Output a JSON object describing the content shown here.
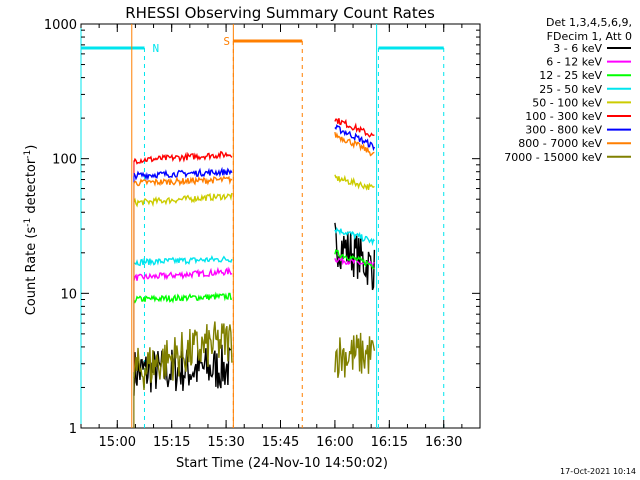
{
  "chart_data": {
    "type": "line",
    "title": "RHESSI Observing Summary Count Rates",
    "xlabel": "Start Time (24-Nov-10 14:50:02)",
    "ylabel": "Count Rate (s⁻¹ detector⁻¹)",
    "ylabel_main": "Count Rate (s",
    "ylabel_exp1": "-1",
    "ylabel_mid": " detector",
    "ylabel_exp2": "-1",
    "ylabel_end": ")",
    "yscale": "log",
    "ylim": [
      1,
      1000
    ],
    "xlim_minutes": [
      -10,
      100
    ],
    "x_ticks": [
      {
        "label": "15:00",
        "min": 0
      },
      {
        "label": "15:15",
        "min": 15
      },
      {
        "label": "15:30",
        "min": 30
      },
      {
        "label": "15:45",
        "min": 45
      },
      {
        "label": "16:00",
        "min": 60
      },
      {
        "label": "16:15",
        "min": 75
      },
      {
        "label": "16:30",
        "min": 90
      }
    ],
    "y_ticks": [
      {
        "label": "1",
        "value": 1
      },
      {
        "label": "10",
        "value": 10
      },
      {
        "label": "100",
        "value": 100
      },
      {
        "label": "1000",
        "value": 1000
      }
    ],
    "legend_header": [
      "Det 1,3,4,5,6,9,",
      "FDecim 1, Att 0"
    ],
    "series": [
      {
        "name": "3 - 6 keV",
        "color": "#000000",
        "seg1": [
          2.6,
          2.8
        ],
        "seg2": [
          24,
          15
        ]
      },
      {
        "name": "6 - 12 keV",
        "color": "#ff00ff",
        "seg1": [
          13,
          14.5
        ],
        "seg2": [
          18,
          16
        ]
      },
      {
        "name": "12 - 25 keV",
        "color": "#00ff00",
        "seg1": [
          9,
          9.5
        ],
        "seg2": [
          20,
          16
        ]
      },
      {
        "name": "25 - 50 keV",
        "color": "#00e5ee",
        "seg1": [
          17,
          18
        ],
        "seg2": [
          30,
          24
        ]
      },
      {
        "name": "50 - 100 keV",
        "color": "#cccc00",
        "seg1": [
          47,
          53
        ],
        "seg2": [
          72,
          60
        ]
      },
      {
        "name": "100 - 300 keV",
        "color": "#ff0000",
        "seg1": [
          97,
          108
        ],
        "seg2": [
          195,
          145
        ]
      },
      {
        "name": "300 - 800 keV",
        "color": "#0000ff",
        "seg1": [
          75,
          80
        ],
        "seg2": [
          170,
          122
        ]
      },
      {
        "name": "800 - 7000 keV",
        "color": "#ff7f00",
        "seg1": [
          66,
          70
        ],
        "seg2": [
          150,
          107
        ]
      },
      {
        "name": "7000 - 15000 keV",
        "color": "#808000",
        "seg1": [
          2.6,
          4.5
        ],
        "seg2": [
          3.5,
          3.5
        ]
      }
    ],
    "intervals": {
      "seg1_minutes": [
        4,
        32
      ],
      "seg2_minutes": [
        59.5,
        71.5
      ]
    },
    "annotations": [
      {
        "label": "N",
        "kind": "night",
        "color": "#00e5ee",
        "ranges": [
          [
            -10,
            7.5
          ],
          [
            72,
            90
          ]
        ]
      },
      {
        "label": "S",
        "kind": "saa",
        "color": "#ff7f00",
        "ranges": [
          [
            32,
            51
          ]
        ]
      }
    ],
    "grid": false,
    "legend_position": "right"
  },
  "footer_timestamp": "17-Oct-2021 10:14"
}
